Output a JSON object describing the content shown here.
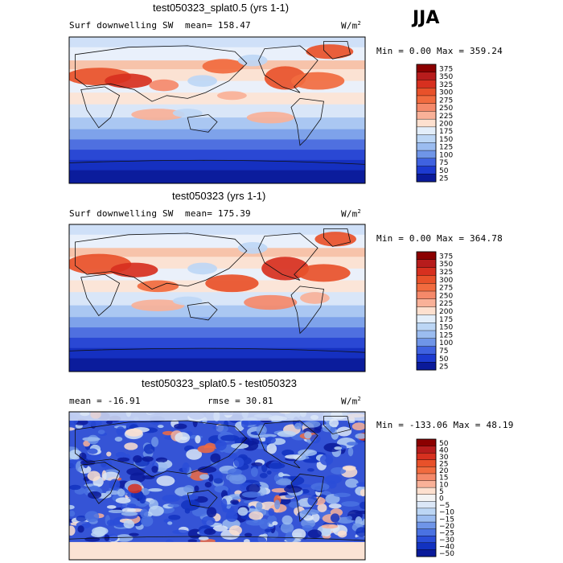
{
  "season": "JJA",
  "unit_sup": "2",
  "chart_data": [
    {
      "type": "heatmap",
      "title": "test050323_splat0.5 (yrs 1-1)",
      "variable": "Surf downwelling SW",
      "stat_text": "mean= 158.47",
      "mean": 158.47,
      "units": "W/m",
      "min_text": "Min =   0.00 Max = 359.24",
      "min": 0.0,
      "max": 359.24,
      "levels": [
        "375",
        "350",
        "325",
        "300",
        "275",
        "250",
        "225",
        "200",
        "175",
        "150",
        "125",
        "100",
        "75",
        "50",
        "25"
      ],
      "colors": [
        "#8b0000",
        "#b71c1c",
        "#d7301f",
        "#e8512a",
        "#f16b3f",
        "#f5896a",
        "#f9b198",
        "#fde0cf",
        "#e3eefa",
        "#bcd6f5",
        "#9bbcf0",
        "#6f95e8",
        "#3f62e0",
        "#1c3ad0",
        "#0a1a9a"
      ]
    },
    {
      "type": "heatmap",
      "title": "test050323 (yrs 1-1)",
      "variable": "Surf downwelling SW",
      "stat_text": "mean= 175.39",
      "mean": 175.39,
      "units": "W/m",
      "min_text": "Min =   0.00 Max = 364.78",
      "min": 0.0,
      "max": 364.78,
      "levels": [
        "375",
        "350",
        "325",
        "300",
        "275",
        "250",
        "225",
        "200",
        "175",
        "150",
        "125",
        "100",
        "75",
        "50",
        "25"
      ],
      "colors": [
        "#8b0000",
        "#b71c1c",
        "#d7301f",
        "#e8512a",
        "#f16b3f",
        "#f5896a",
        "#f9b198",
        "#fde0cf",
        "#e3eefa",
        "#bcd6f5",
        "#9bbcf0",
        "#6f95e8",
        "#3f62e0",
        "#1c3ad0",
        "#0a1a9a"
      ]
    },
    {
      "type": "heatmap",
      "title": "test050323_splat0.5 - test050323",
      "variable": "mean = -16.91",
      "stat_text": "rmse =  30.81",
      "mean": -16.91,
      "rmse": 30.81,
      "units": "W/m",
      "min_text": "Min = -133.06 Max =  48.19",
      "min": -133.06,
      "max": 48.19,
      "levels": [
        "50",
        "40",
        "30",
        "25",
        "20",
        "15",
        "10",
        "5",
        "0",
        "−5",
        "−10",
        "−15",
        "−20",
        "−25",
        "−30",
        "−40",
        "−50"
      ],
      "colors": [
        "#8b0000",
        "#b71c1c",
        "#d7301f",
        "#e8512a",
        "#f16b3f",
        "#f5896a",
        "#f9b198",
        "#fde0cf",
        "#f3f3f3",
        "#dbe7f7",
        "#bcd6f5",
        "#9bbcf0",
        "#6f95e8",
        "#4a72e2",
        "#2a4ed8",
        "#1232c0",
        "#0a1a9a"
      ]
    }
  ]
}
